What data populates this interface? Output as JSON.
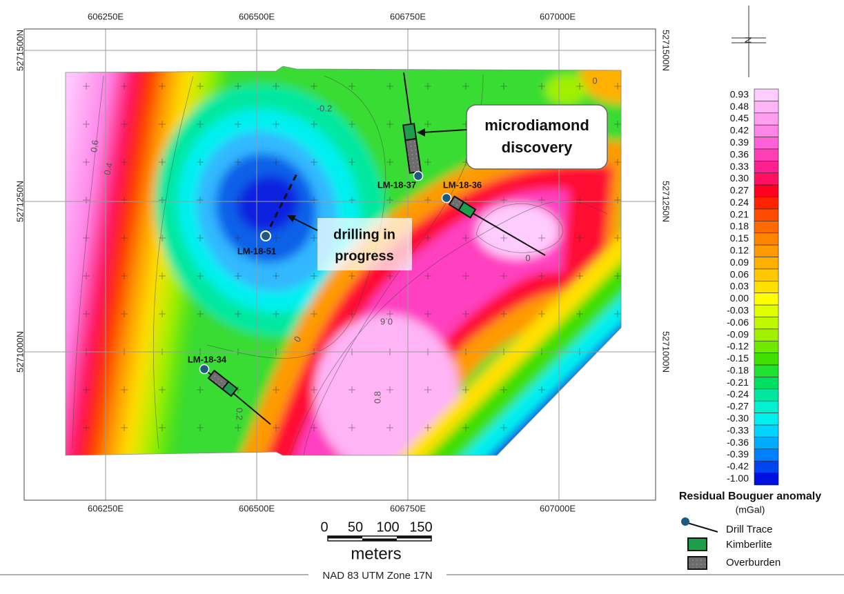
{
  "map": {
    "easting_labels": [
      "606250E",
      "606500E",
      "606750E",
      "607000E"
    ],
    "northing_labels": [
      "5271500N",
      "5271250N",
      "5271000N"
    ],
    "contour_labels": [
      "-0.2",
      "0.6",
      "0.4",
      "0",
      "0.2",
      "0",
      "0.6",
      "0.8",
      "0"
    ],
    "wells": [
      "LM-18-37",
      "LM-18-36",
      "LM-18-51",
      "LM-18-34"
    ],
    "callouts": [
      {
        "lines": [
          "microdiamond",
          "discovery"
        ]
      },
      {
        "lines": [
          "drilling in",
          "progress"
        ]
      }
    ],
    "north_label": "N"
  },
  "colorbar": {
    "title": "Residual Bouguer anomaly",
    "unit": "(mGal)",
    "items": [
      {
        "label": "0.93",
        "color": "#ffccff"
      },
      {
        "label": "0.48",
        "color": "#ffb4f6"
      },
      {
        "label": "0.45",
        "color": "#ff9ff0"
      },
      {
        "label": "0.42",
        "color": "#ff84e8"
      },
      {
        "label": "0.39",
        "color": "#ff62d8"
      },
      {
        "label": "0.36",
        "color": "#ff40b4"
      },
      {
        "label": "0.33",
        "color": "#ff2090"
      },
      {
        "label": "0.30",
        "color": "#ff1060"
      },
      {
        "label": "0.27",
        "color": "#ff0020"
      },
      {
        "label": "0.24",
        "color": "#ff2400"
      },
      {
        "label": "0.21",
        "color": "#ff4a00"
      },
      {
        "label": "0.18",
        "color": "#ff6a00"
      },
      {
        "label": "0.15",
        "color": "#ff8400"
      },
      {
        "label": "0.12",
        "color": "#ff9a00"
      },
      {
        "label": "0.09",
        "color": "#ffb000"
      },
      {
        "label": "0.06",
        "color": "#ffc800"
      },
      {
        "label": "0.03",
        "color": "#ffe000"
      },
      {
        "label": "0.00",
        "color": "#ffff00"
      },
      {
        "label": "-0.03",
        "color": "#e0ff00"
      },
      {
        "label": "-0.06",
        "color": "#c0f800"
      },
      {
        "label": "-0.09",
        "color": "#a0f000"
      },
      {
        "label": "-0.12",
        "color": "#70e800"
      },
      {
        "label": "-0.15",
        "color": "#40e000"
      },
      {
        "label": "-0.18",
        "color": "#20e030"
      },
      {
        "label": "-0.21",
        "color": "#00e060"
      },
      {
        "label": "-0.24",
        "color": "#00e8a0"
      },
      {
        "label": "-0.27",
        "color": "#00f0d0"
      },
      {
        "label": "-0.30",
        "color": "#00f0f0"
      },
      {
        "label": "-0.33",
        "color": "#00d4ff"
      },
      {
        "label": "-0.36",
        "color": "#00acff"
      },
      {
        "label": "-0.39",
        "color": "#0080ff"
      },
      {
        "label": "-0.42",
        "color": "#0044f0"
      },
      {
        "label": "-1.00",
        "color": "#0010e0"
      }
    ]
  },
  "scale_bar": {
    "labels": [
      "0",
      "50",
      "100",
      "150"
    ],
    "unit": "meters"
  },
  "legend": {
    "items": [
      "Drill Trace",
      "Kimberlite",
      "Overburden"
    ]
  },
  "projection": "NAD 83 UTM Zone 17N"
}
